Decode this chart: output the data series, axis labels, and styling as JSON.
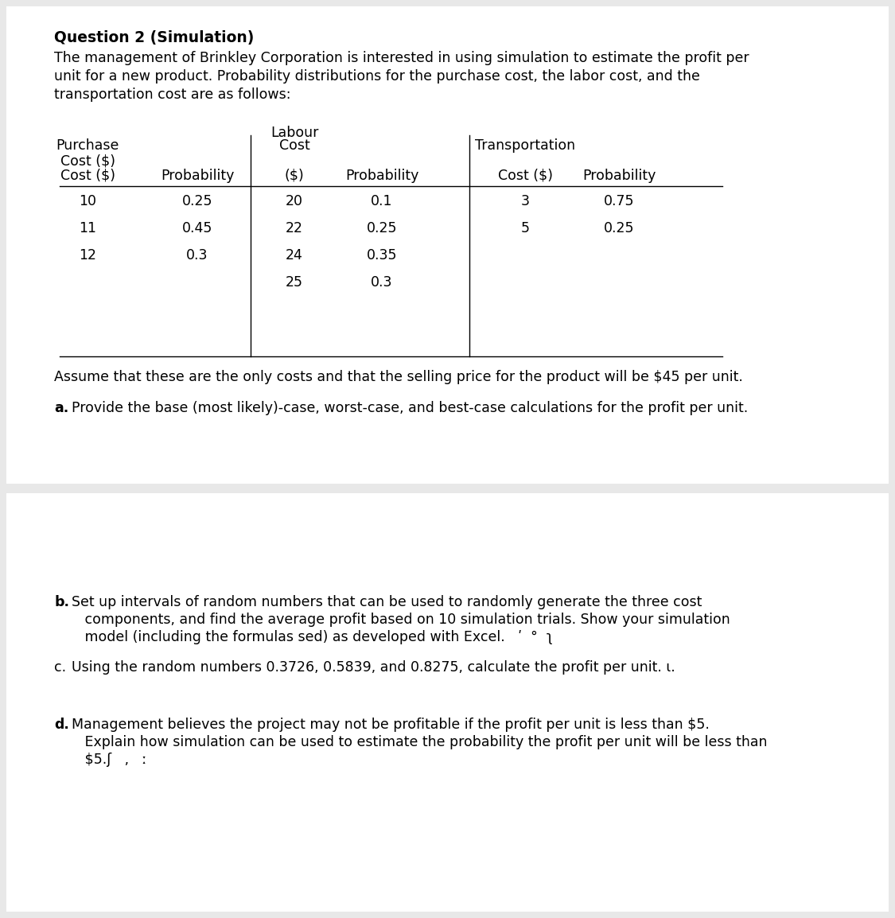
{
  "bg_color": "#e8e8e8",
  "panel1_bg": "#ffffff",
  "panel2_bg": "#ffffff",
  "title": "Question 2 (Simulation)",
  "intro_line1": "The management of Brinkley Corporation is interested in using simulation to estimate the profit per",
  "intro_line2": "unit for a new product. Probability distributions for the purchase cost, the labor cost, and the",
  "intro_line3": "transportation cost are as follows:",
  "table": {
    "purchase_cost": [
      10,
      11,
      12
    ],
    "purchase_prob": [
      "0.25",
      "0.45",
      "0.3"
    ],
    "labour_cost": [
      20,
      22,
      24,
      25
    ],
    "labour_prob": [
      "0.1",
      "0.25",
      "0.35",
      "0.3"
    ],
    "transport_cost": [
      3,
      5
    ],
    "transport_prob": [
      "0.75",
      "0.25"
    ]
  },
  "assume_text": "Assume that these are the only costs and that the selling price for the product will be $45 per unit.",
  "part_a_text": "Provide the base (most likely)-case, worst-case, and best-case calculations for the profit per unit.",
  "part_b_line1": "Set up intervals of random numbers that can be used to randomly generate the three cost",
  "part_b_line2": "   components, and find the average profit based on 10 simulation trials. Show your simulation",
  "part_b_line3": "   model (including the formulas sed) as developed with Excel.   ʹ  °  ʅ",
  "part_c_text": "Using the random numbers 0.3726, 0.5839, and 0.8275, calculate the profit per unit. ι.",
  "part_d_line1": "Management believes the project may not be profitable if the profit per unit is less than $5.",
  "part_d_line2": "   Explain how simulation can be used to estimate the probability the profit per unit will be less than",
  "part_d_line3": "   $5.ʃ   ,   ː"
}
